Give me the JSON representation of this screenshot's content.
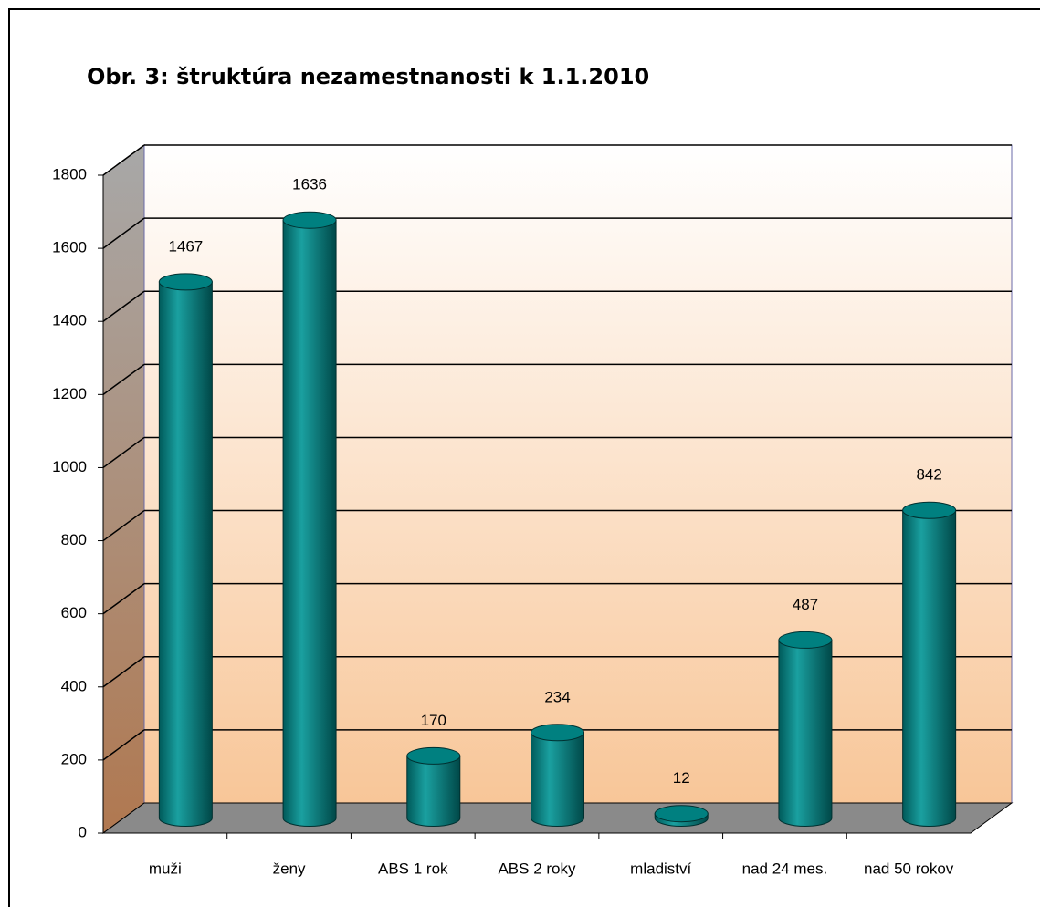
{
  "chart_data": {
    "type": "bar",
    "title": "Obr. 3: štruktúra nezamestnanosti k 1.1.2010",
    "categories": [
      "muži",
      "ženy",
      "ABS 1 rok",
      "ABS 2 roky",
      "mladiství",
      "nad 24 mes.",
      "nad 50 rokov"
    ],
    "values": [
      1467,
      1636,
      170,
      234,
      12,
      487,
      842
    ],
    "color": "#008080",
    "ylim": [
      0,
      1800
    ],
    "yticks": [
      0,
      200,
      400,
      600,
      800,
      1000,
      1200,
      1400,
      1600,
      1800
    ],
    "grid": true
  }
}
